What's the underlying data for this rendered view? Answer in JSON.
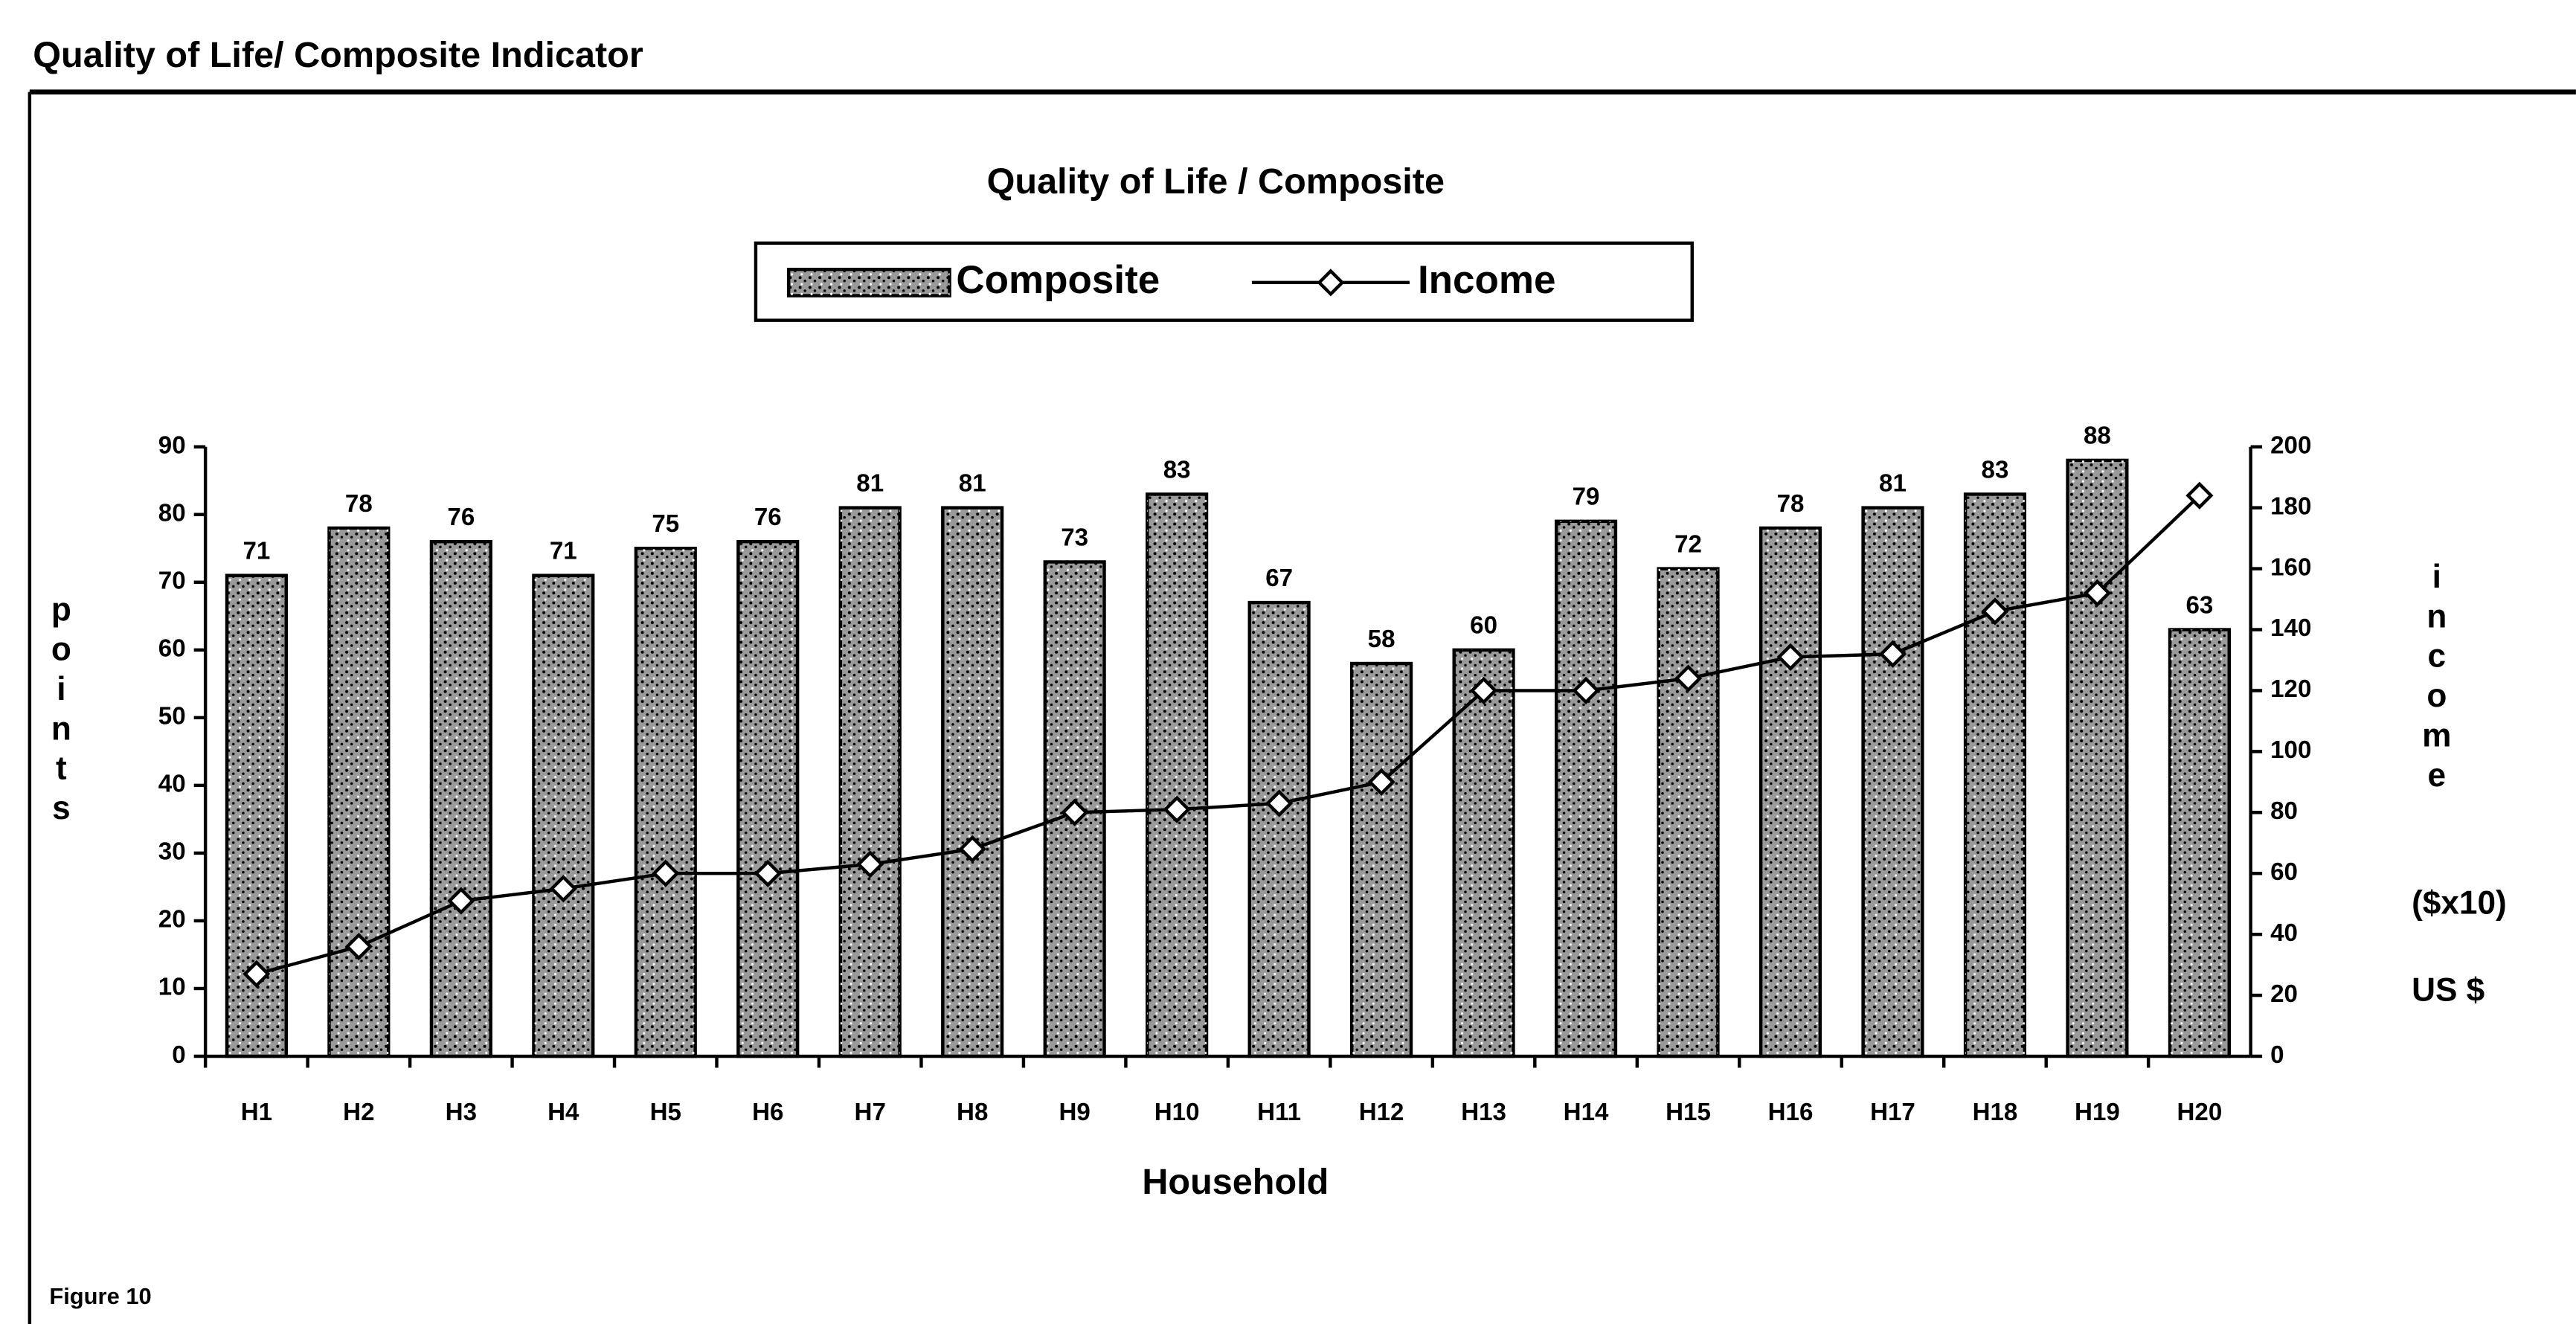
{
  "page_header": "Quality of Life/ Composite Indicator",
  "footer": "Figure 10",
  "chart_data": {
    "type": "bar_line",
    "title": "Quality of Life / Composite",
    "x_label": "Household",
    "y_label": "points",
    "y2_label": "income",
    "y2_units": [
      "($x10)",
      "US $"
    ],
    "categories": [
      "H1",
      "H2",
      "H3",
      "H4",
      "H5",
      "H6",
      "H7",
      "H8",
      "H9",
      "H10",
      "H11",
      "H12",
      "H13",
      "H14",
      "H15",
      "H16",
      "H17",
      "H18",
      "H19",
      "H20"
    ],
    "series": [
      {
        "name": "Composite",
        "type": "bar",
        "color": "#9a9a9a",
        "values": [
          71,
          78,
          76,
          71,
          75,
          76,
          81,
          81,
          73,
          83,
          67,
          58,
          60,
          79,
          72,
          78,
          81,
          83,
          88,
          63
        ]
      },
      {
        "name": "Income",
        "type": "line",
        "axis": "y2",
        "color": "#000000",
        "values": [
          27,
          36,
          51,
          55,
          60,
          60,
          63,
          68,
          80,
          81,
          83,
          90,
          120,
          120,
          124,
          131,
          132,
          146,
          152,
          184
        ]
      }
    ],
    "ylim": [
      0,
      90
    ],
    "yticks": [
      0,
      10,
      20,
      30,
      40,
      50,
      60,
      70,
      80,
      90
    ],
    "y2lim": [
      0,
      200
    ],
    "y2ticks": [
      0,
      20,
      40,
      60,
      80,
      100,
      120,
      140,
      160,
      180,
      200
    ],
    "legend": "top"
  }
}
